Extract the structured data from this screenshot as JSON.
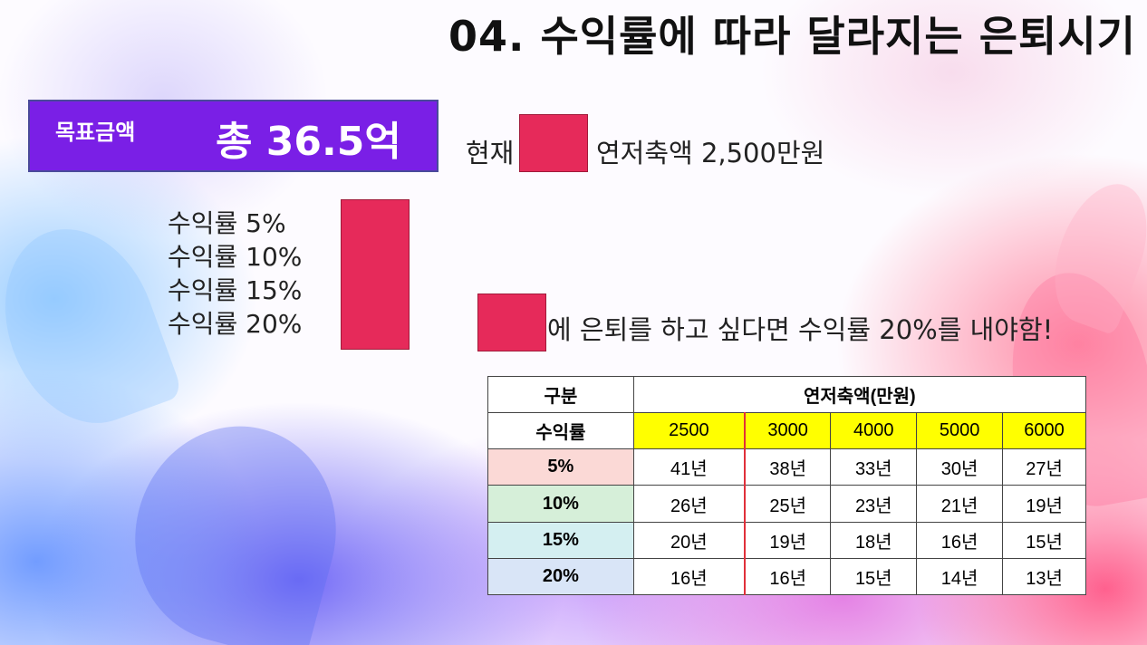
{
  "title": "04. 수익률에 따라 달라지는 은퇴시기",
  "goal": {
    "label": "목표금액",
    "value": "총 36.5억"
  },
  "current": {
    "prefix": "현재",
    "suffix": "연저축액 2,500만원"
  },
  "rates": [
    "수익률 5%",
    "수익률 10%",
    "수익률 15%",
    "수익률 20%"
  ],
  "conclusion": "에 은퇴를 하고 싶다면 수익률 20%를 내야함!",
  "colors": {
    "accent_red": "#e62a5a",
    "goal_purple": "#7a1fe6",
    "highlight_yellow": "#ffff00"
  },
  "table": {
    "corner_header": "구분",
    "group_header": "연저축액(만원)",
    "rate_header": "수익률",
    "savings": [
      "2500",
      "3000",
      "4000",
      "5000",
      "6000"
    ],
    "rows": [
      {
        "rate": "5%",
        "values": [
          "41년",
          "38년",
          "33년",
          "30년",
          "27년"
        ]
      },
      {
        "rate": "10%",
        "values": [
          "26년",
          "25년",
          "23년",
          "21년",
          "19년"
        ]
      },
      {
        "rate": "15%",
        "values": [
          "20년",
          "19년",
          "18년",
          "16년",
          "15년"
        ]
      },
      {
        "rate": "20%",
        "values": [
          "16년",
          "16년",
          "15년",
          "14년",
          "13년"
        ]
      }
    ]
  }
}
